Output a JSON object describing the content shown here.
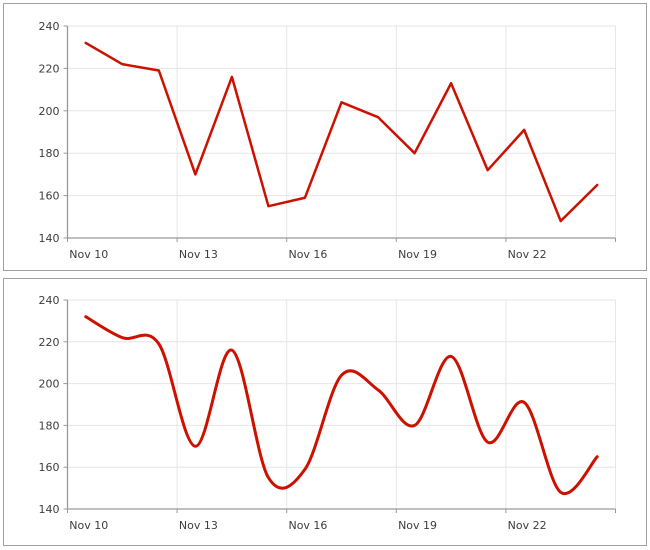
{
  "page": {
    "background_color": "#ffffff",
    "panel_border_color": "#a0a0a0",
    "panel_background_color": "#ffffff"
  },
  "chart_data": [
    {
      "type": "line",
      "title": "",
      "xlabel": "",
      "ylabel": "",
      "values": [
        232,
        222,
        219,
        170,
        216,
        155,
        159,
        204,
        197,
        180,
        213,
        172,
        191,
        148,
        165
      ],
      "x_tick_labels": [
        "Nov 10",
        "Nov 13",
        "Nov 16",
        "Nov 19",
        "Nov 22"
      ],
      "x_tick_point_indexes": [
        0,
        3,
        6,
        9,
        12
      ],
      "points_per_tick_interval": 3,
      "point_count": 15,
      "ylim": [
        140,
        240
      ],
      "y_ticks": [
        140,
        160,
        180,
        200,
        220,
        240
      ],
      "grid": true,
      "legend": false,
      "line_color": "#cc1100",
      "grid_color": "#e6e6e6",
      "axis_color": "#999999",
      "tick_label_color": "#3d3d3d"
    },
    {
      "type": "line",
      "smoothing": "spline",
      "title": "",
      "xlabel": "",
      "ylabel": "",
      "values": [
        232,
        222,
        219,
        170,
        216,
        155,
        159,
        204,
        197,
        180,
        213,
        172,
        191,
        148,
        165
      ],
      "x_tick_labels": [
        "Nov 10",
        "Nov 13",
        "Nov 16",
        "Nov 19",
        "Nov 22"
      ],
      "x_tick_point_indexes": [
        0,
        3,
        6,
        9,
        12
      ],
      "points_per_tick_interval": 3,
      "point_count": 15,
      "ylim": [
        140,
        240
      ],
      "y_ticks": [
        140,
        160,
        180,
        200,
        220,
        240
      ],
      "grid": true,
      "legend": false,
      "line_color": "#cc1100",
      "grid_color": "#e6e6e6",
      "axis_color": "#999999",
      "tick_label_color": "#3d3d3d"
    }
  ]
}
